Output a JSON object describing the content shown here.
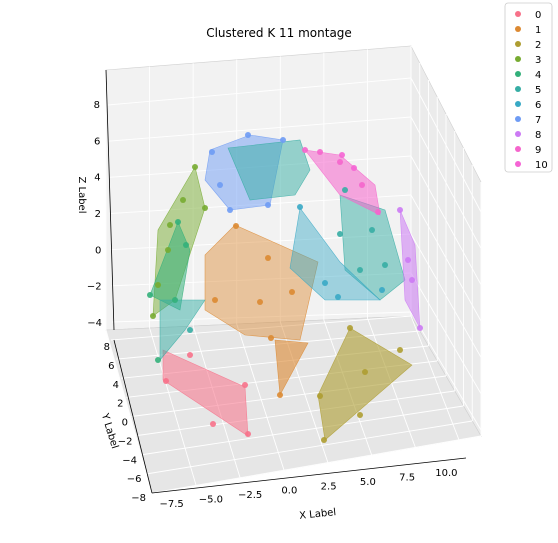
{
  "chart_data": {
    "type": "scatter",
    "title": "Clustered K 11 montage",
    "xlabel": "X Label",
    "ylabel": "Y Label",
    "zlabel": "Z Label",
    "x_ticks": [
      "−7.5",
      "−5.0",
      "−2.5",
      "0.0",
      "2.5",
      "5.0",
      "7.5",
      "10.0"
    ],
    "y_ticks": [
      "8",
      "6",
      "4",
      "2",
      "0",
      "−2",
      "−4",
      "−6",
      "−8"
    ],
    "z_ticks": [
      "8",
      "6",
      "4",
      "2",
      "0",
      "−2",
      "−4"
    ],
    "grid": true,
    "legend_position": "top-right",
    "series": [
      {
        "name": "0",
        "color": "#f77189"
      },
      {
        "name": "1",
        "color": "#dc8932"
      },
      {
        "name": "2",
        "color": "#ae9d31"
      },
      {
        "name": "3",
        "color": "#77ab31"
      },
      {
        "name": "4",
        "color": "#33b07a"
      },
      {
        "name": "5",
        "color": "#36ada4"
      },
      {
        "name": "6",
        "color": "#38a9c5"
      },
      {
        "name": "7",
        "color": "#6e9bf4"
      },
      {
        "name": "8",
        "color": "#cc7af4"
      },
      {
        "name": "9",
        "color": "#f565cc"
      },
      {
        "name": "10",
        "color": "#f564d4"
      }
    ]
  }
}
